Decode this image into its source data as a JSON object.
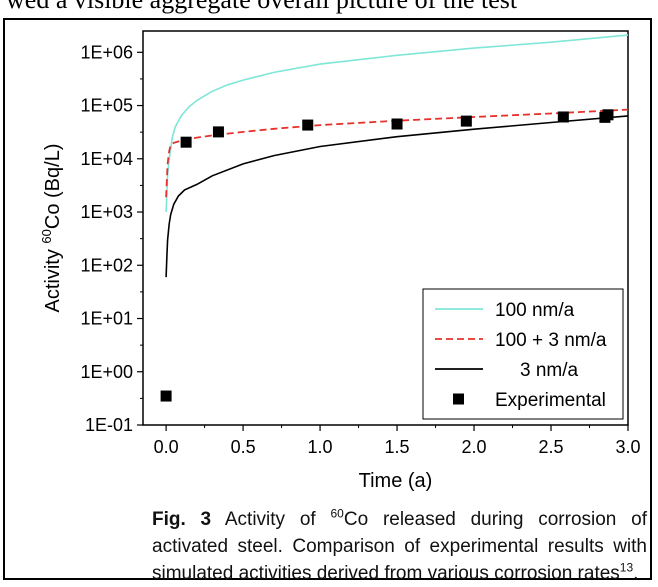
{
  "page_top_text": "wed a visible aggregate overall picture of the test",
  "chart_data": {
    "type": "line",
    "xlabel": "Time (a)",
    "ylabel_prefix": "Activity ",
    "ylabel_sup": "60",
    "ylabel_suffix": "Co (Bq/L)",
    "xlim": [
      -0.15,
      3.0
    ],
    "ylim_log10": [
      -1,
      6.4
    ],
    "y_scale": "log",
    "x_ticks": [
      0.0,
      0.5,
      1.0,
      1.5,
      2.0,
      2.5,
      3.0
    ],
    "x_tick_labels": [
      "0.0",
      "0.5",
      "1.0",
      "1.5",
      "2.0",
      "2.5",
      "3.0"
    ],
    "y_ticks_log10": [
      -1,
      0,
      1,
      2,
      3,
      4,
      5,
      6
    ],
    "y_tick_labels": [
      "1E-01",
      "1E+00",
      "1E+01",
      "1E+02",
      "1E+03",
      "1E+04",
      "1E+05",
      "1E+06"
    ],
    "legend_position": "bottom-right",
    "series": [
      {
        "name": "100 nm/a",
        "style": "solid",
        "color": "#7fe6d8",
        "x": [
          0.0,
          0.01,
          0.02,
          0.04,
          0.06,
          0.1,
          0.15,
          0.2,
          0.3,
          0.4,
          0.5,
          0.7,
          1.0,
          1.5,
          2.0,
          2.5,
          3.0
        ],
        "y": [
          1000,
          5000,
          10000,
          25000,
          40000,
          65000,
          95000,
          125000,
          185000,
          245000,
          300000,
          420000,
          600000,
          880000,
          1200000,
          1550000,
          2100000
        ]
      },
      {
        "name": "100 + 3 nm/a",
        "style": "dashed",
        "color": "#e8312a",
        "x": [
          0.0,
          0.01,
          0.02,
          0.03,
          0.05,
          0.1,
          0.2,
          0.3,
          0.5,
          0.7,
          1.0,
          1.5,
          2.0,
          2.5,
          3.0
        ],
        "y": [
          1900,
          8000,
          14000,
          18000,
          20000,
          22000,
          25000,
          27500,
          32000,
          36500,
          43000,
          52000,
          61000,
          71000,
          84000
        ]
      },
      {
        "name": "3 nm/a",
        "style": "solid",
        "color": "#000000",
        "x": [
          0.0,
          0.005,
          0.01,
          0.02,
          0.03,
          0.05,
          0.08,
          0.12,
          0.2,
          0.3,
          0.5,
          0.7,
          1.0,
          1.5,
          2.0,
          2.5,
          3.0
        ],
        "y": [
          60,
          150,
          300,
          600,
          900,
          1400,
          2000,
          2600,
          3300,
          4800,
          8000,
          11500,
          17000,
          26000,
          36000,
          48000,
          64000
        ]
      },
      {
        "name": "Experimental",
        "style": "markers",
        "color": "#000000",
        "x": [
          0.0,
          0.13,
          0.34,
          0.92,
          1.5,
          1.95,
          2.58,
          2.85,
          2.87
        ],
        "y": [
          0.35,
          20500,
          32000,
          43000,
          45000,
          51000,
          61000,
          60000,
          67000
        ]
      }
    ]
  },
  "caption": {
    "fig_label": "Fig. 3",
    "text_before_sup": " Activity of ",
    "sup": "60",
    "text_after_sup": "Co released during corrosion of activated steel. Comparison of experimental results with simulated activities derived from various corrosion rates",
    "ref_sup": "13",
    "end": "."
  }
}
